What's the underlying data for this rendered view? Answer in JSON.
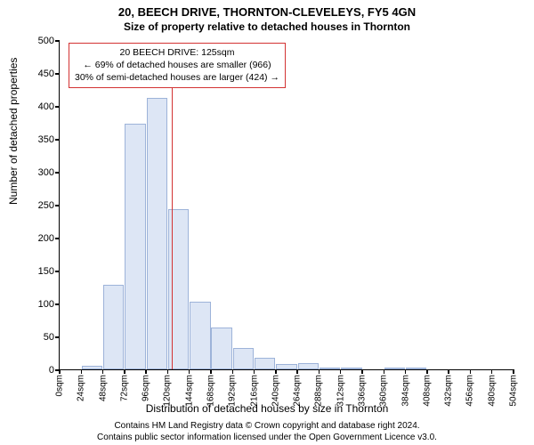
{
  "header": {
    "title": "20, BEECH DRIVE, THORNTON-CLEVELEYS, FY5 4GN",
    "subtitle": "Size of property relative to detached houses in Thornton"
  },
  "axes": {
    "ylabel": "Number of detached properties",
    "xlabel": "Distribution of detached houses by size in Thornton"
  },
  "attribution": {
    "line1": "Contains HM Land Registry data © Crown copyright and database right 2024.",
    "line2": "Contains public sector information licensed under the Open Government Licence v3.0."
  },
  "chart": {
    "type": "histogram",
    "background_color": "#ffffff",
    "axis_color": "#000000",
    "bar_fill": "#dde6f5",
    "bar_stroke": "#9db3d9",
    "marker_color": "#d33333",
    "ylim": [
      0,
      500
    ],
    "ytick_step": 50,
    "xlim": [
      0,
      504
    ],
    "xtick_step": 24,
    "xtick_unit": "sqm",
    "bin_width": 24,
    "bar_rel_width": 0.96,
    "bins": [
      {
        "start": 0,
        "count": 0
      },
      {
        "start": 24,
        "count": 6
      },
      {
        "start": 48,
        "count": 128
      },
      {
        "start": 72,
        "count": 373
      },
      {
        "start": 96,
        "count": 412
      },
      {
        "start": 120,
        "count": 243
      },
      {
        "start": 144,
        "count": 103
      },
      {
        "start": 168,
        "count": 63
      },
      {
        "start": 192,
        "count": 32
      },
      {
        "start": 216,
        "count": 17
      },
      {
        "start": 240,
        "count": 8
      },
      {
        "start": 264,
        "count": 9
      },
      {
        "start": 288,
        "count": 2
      },
      {
        "start": 312,
        "count": 3
      },
      {
        "start": 336,
        "count": 0
      },
      {
        "start": 360,
        "count": 2
      },
      {
        "start": 384,
        "count": 1
      },
      {
        "start": 408,
        "count": 0
      },
      {
        "start": 432,
        "count": 0
      },
      {
        "start": 456,
        "count": 0
      },
      {
        "start": 480,
        "count": 0
      }
    ],
    "marker_x": 125,
    "annotation": {
      "line1": "20 BEECH DRIVE: 125sqm",
      "line2": "← 69% of detached houses are smaller (966)",
      "line3": "30% of semi-detached houses are larger (424) →",
      "box_border": "#d33333",
      "font_size": 10.5
    }
  }
}
